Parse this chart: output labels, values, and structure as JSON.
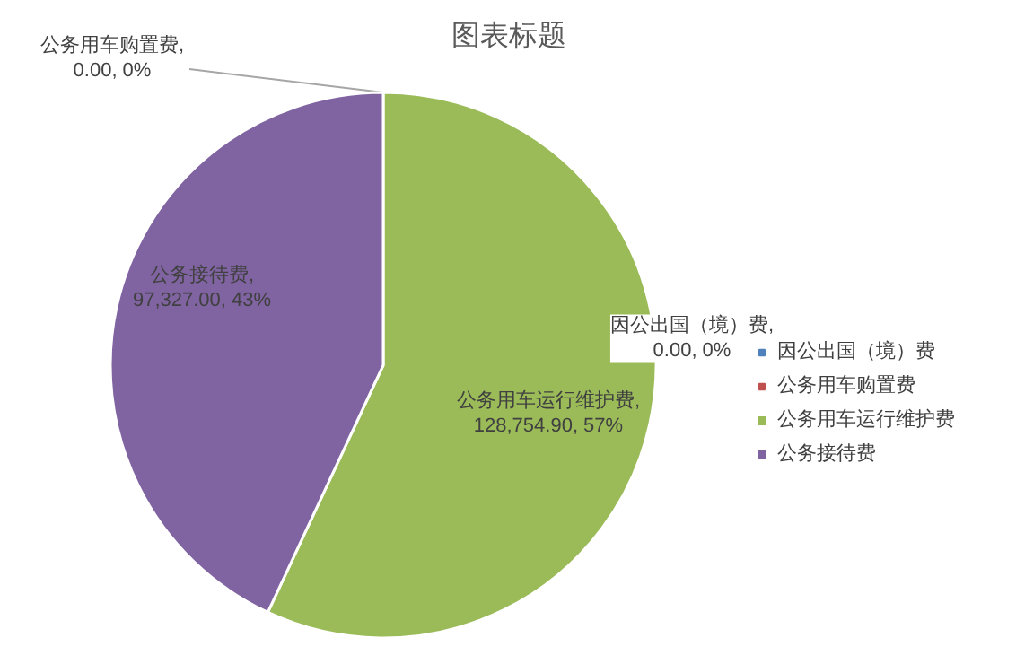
{
  "chart_data": {
    "type": "pie",
    "title": "图表标题",
    "categories": [
      "因公出国（境）费",
      "公务用车购置费",
      "公务用车运行维护费",
      "公务接待费"
    ],
    "values": [
      0.0,
      0.0,
      128754.9,
      97327.0
    ],
    "colors": [
      "#4f81bd",
      "#c0504d",
      "#9bbb59",
      "#8064a2"
    ],
    "value_labels": [
      "因公出国（境）费, 0.00, 0%",
      "公务用车购置费, 0.00, 0%",
      "公务用车运行维护费, 128,754.90, 57%",
      "公务接待费, 97,327.00, 43%"
    ],
    "legend": "right"
  }
}
